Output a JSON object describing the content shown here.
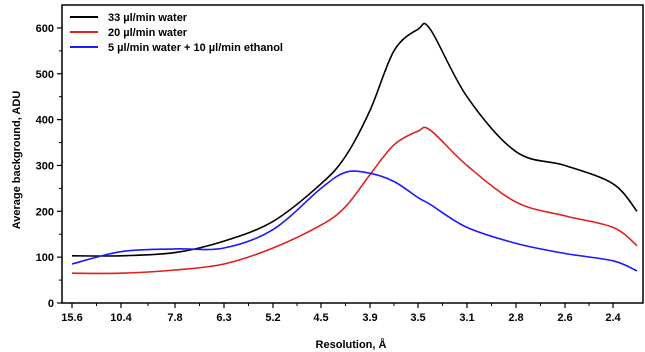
{
  "chart_data": {
    "type": "line",
    "xlabel": "Resolution, Å",
    "ylabel": "Average background, ADU",
    "x_tick_labels": [
      "15.6",
      "10.4",
      "7.8",
      "6.3",
      "5.2",
      "4.5",
      "3.9",
      "3.5",
      "3.1",
      "2.8",
      "2.6",
      "2.4"
    ],
    "ylim": [
      0,
      650
    ],
    "y_ticks": [
      0,
      100,
      200,
      300,
      400,
      500,
      600
    ],
    "grid": false,
    "legend_position": "top-left",
    "x": [
      15.6,
      10.4,
      7.8,
      6.3,
      5.2,
      4.5,
      4.2,
      3.9,
      3.7,
      3.5,
      3.4,
      3.1,
      2.8,
      2.6,
      2.4,
      2.3
    ],
    "series": [
      {
        "name": "33 µl/min water",
        "color": "#000000",
        "values": [
          103,
          103,
          110,
          135,
          178,
          260,
          320,
          420,
          550,
          597,
          597,
          450,
          330,
          300,
          260,
          200
        ]
      },
      {
        "name": "20 µl/min water",
        "color": "#e02020",
        "values": [
          65,
          65,
          72,
          85,
          120,
          170,
          210,
          280,
          345,
          375,
          377,
          300,
          220,
          190,
          165,
          125
        ]
      },
      {
        "name": "5 µl/min water + 10 µl/min ethanol",
        "color": "#1a1aff",
        "values": [
          85,
          112,
          118,
          120,
          160,
          250,
          285,
          283,
          265,
          230,
          215,
          165,
          130,
          108,
          92,
          70
        ]
      }
    ]
  }
}
